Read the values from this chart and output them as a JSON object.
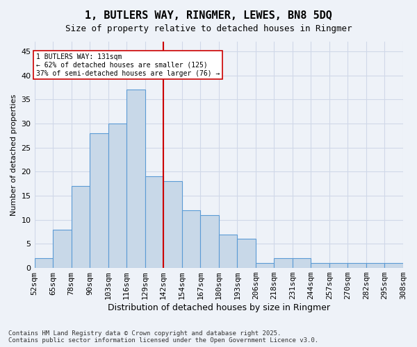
{
  "title": "1, BUTLERS WAY, RINGMER, LEWES, BN8 5DQ",
  "subtitle": "Size of property relative to detached houses in Ringmer",
  "xlabel": "Distribution of detached houses by size in Ringmer",
  "ylabel": "Number of detached properties",
  "bin_labels": [
    "52sqm",
    "65sqm",
    "78sqm",
    "90sqm",
    "103sqm",
    "116sqm",
    "129sqm",
    "142sqm",
    "154sqm",
    "167sqm",
    "180sqm",
    "193sqm",
    "206sqm",
    "218sqm",
    "231sqm",
    "244sqm",
    "257sqm",
    "270sqm",
    "282sqm",
    "295sqm",
    "308sqm"
  ],
  "counts": [
    2,
    8,
    17,
    28,
    30,
    37,
    19,
    18,
    12,
    11,
    7,
    6,
    1,
    2,
    2,
    1,
    1,
    1,
    1,
    1
  ],
  "bar_color": "#c8d8e8",
  "bar_edge_color": "#5b9bd5",
  "grid_color": "#d0d8e8",
  "vline_color": "#cc0000",
  "annotation_text": "1 BUTLERS WAY: 131sqm\n← 62% of detached houses are smaller (125)\n37% of semi-detached houses are larger (76) →",
  "annotation_box_color": "#ffffff",
  "annotation_box_edge": "#cc0000",
  "ylim": [
    0,
    47
  ],
  "yticks": [
    0,
    5,
    10,
    15,
    20,
    25,
    30,
    35,
    40,
    45
  ],
  "footer": "Contains HM Land Registry data © Crown copyright and database right 2025.\nContains public sector information licensed under the Open Government Licence v3.0.",
  "bg_color": "#eef2f8",
  "plot_bg_color": "#eef2f8"
}
